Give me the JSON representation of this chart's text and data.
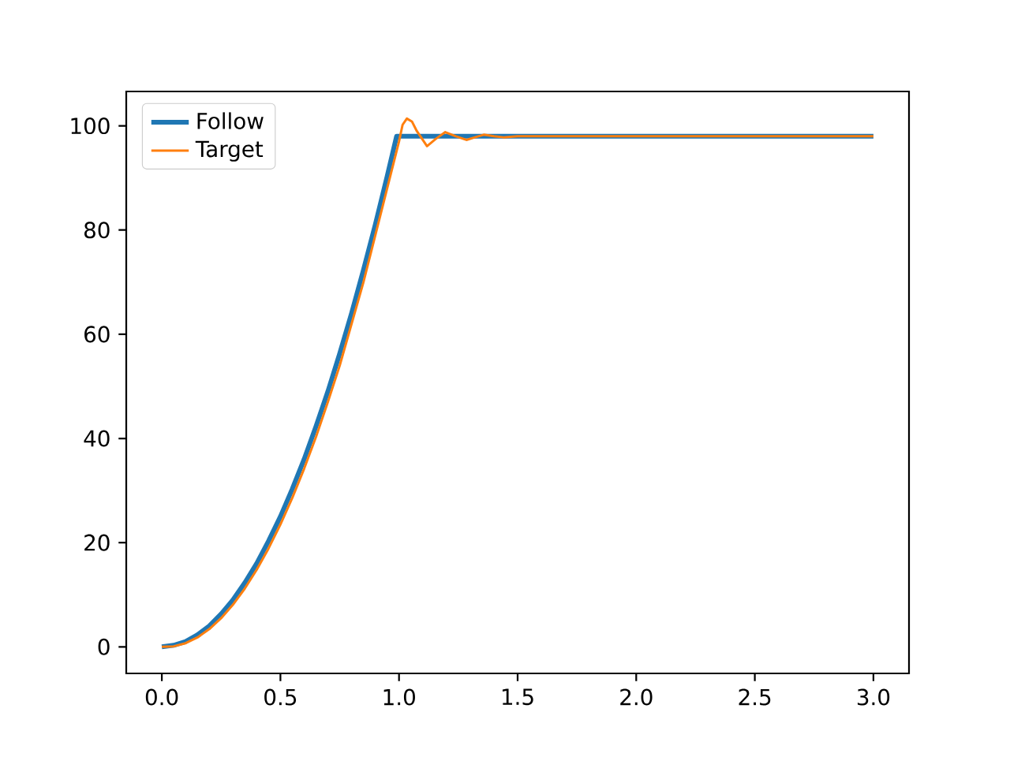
{
  "chart_data": {
    "type": "line",
    "series": [
      {
        "name": "Follow",
        "color": "#1f77b4",
        "x": [
          0,
          0.05,
          0.1,
          0.15,
          0.2,
          0.25,
          0.3,
          0.35,
          0.4,
          0.45,
          0.5,
          0.55,
          0.6,
          0.65,
          0.7,
          0.75,
          0.8,
          0.85,
          0.9,
          0.95,
          0.99,
          3.0
        ],
        "values": [
          0,
          0.3,
          1,
          2.3,
          4,
          6.3,
          9,
          12.3,
          16,
          20.3,
          25,
          30.3,
          36,
          42.3,
          49,
          56.3,
          64,
          72.3,
          81,
          90.3,
          98,
          98
        ]
      },
      {
        "name": "Target",
        "color": "#ff7f0e",
        "x": [
          0,
          0.05,
          0.1,
          0.15,
          0.2,
          0.25,
          0.3,
          0.35,
          0.4,
          0.45,
          0.5,
          0.55,
          0.6,
          0.65,
          0.7,
          0.75,
          0.8,
          0.85,
          0.9,
          0.95,
          1.0,
          1.015,
          1.033,
          1.055,
          1.075,
          1.118,
          1.155,
          1.195,
          1.24,
          1.284,
          1.32,
          1.357,
          1.4,
          1.44,
          1.5,
          3.0
        ],
        "values": [
          0,
          0.1,
          0.7,
          1.8,
          3.4,
          5.5,
          8.1,
          11.2,
          14.8,
          18.9,
          23.5,
          28.6,
          34.2,
          40.3,
          47,
          54,
          62,
          70,
          79,
          88,
          97,
          100.2,
          101.4,
          100.8,
          99,
          96.1,
          97.5,
          98.8,
          98,
          97.3,
          97.8,
          98.3,
          98,
          97.8,
          98,
          98
        ]
      }
    ],
    "xlim": [
      -0.15,
      3.15
    ],
    "ylim": [
      -5.1,
      106.6
    ],
    "xticks": [
      {
        "value": 0,
        "label": "0.0"
      },
      {
        "value": 0.5,
        "label": "0.5"
      },
      {
        "value": 1,
        "label": "1.0"
      },
      {
        "value": 1.5,
        "label": "1.5"
      },
      {
        "value": 2,
        "label": "2.0"
      },
      {
        "value": 2.5,
        "label": "2.5"
      },
      {
        "value": 3,
        "label": "3.0"
      }
    ],
    "yticks": [
      0,
      20,
      40,
      60,
      80,
      100
    ],
    "legend": "top left"
  }
}
